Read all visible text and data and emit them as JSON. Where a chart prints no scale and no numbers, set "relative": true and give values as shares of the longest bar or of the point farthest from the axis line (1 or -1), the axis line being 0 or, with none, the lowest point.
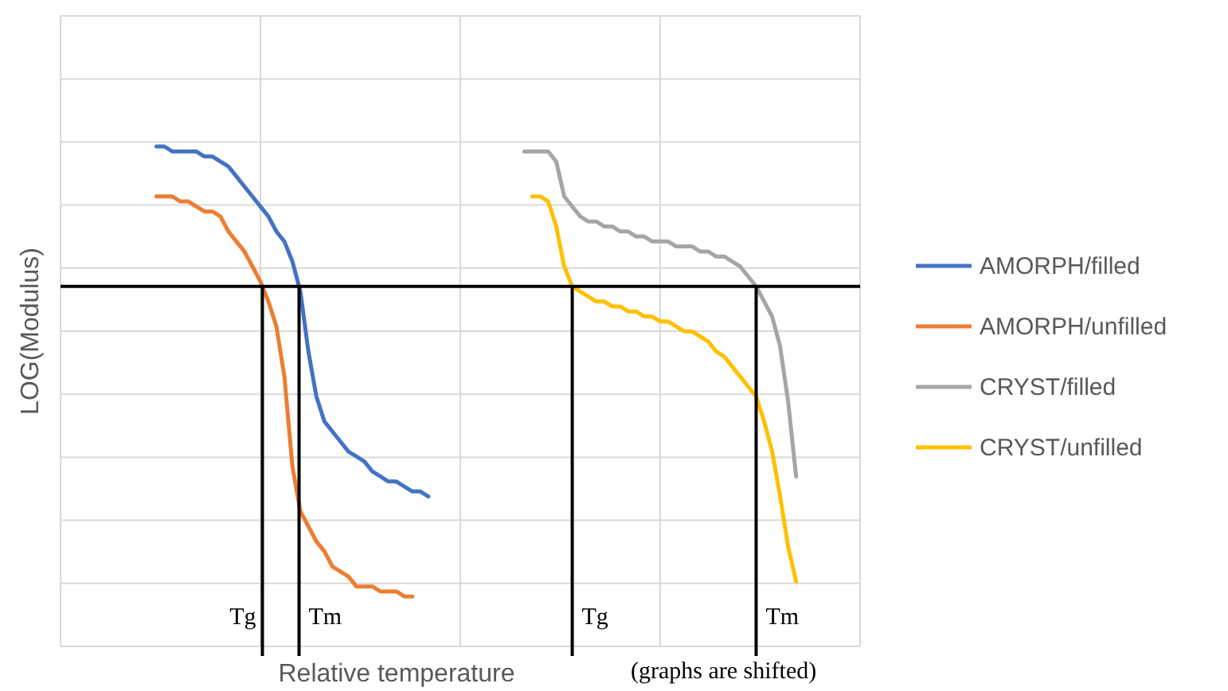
{
  "chart_data": {
    "type": "line",
    "relative": true,
    "xlabel": "Relative temperature",
    "ylabel": "LOG(Modulus)",
    "annotations": [
      "Tg",
      "Tm",
      "Tg",
      "Tm",
      "(graphs are shifted)"
    ],
    "grid": true,
    "legend": "right",
    "marker": "none",
    "line_style": "solid",
    "categories": [
      null,
      null,
      null,
      null,
      null,
      null,
      null,
      null,
      null,
      null,
      null,
      null,
      null,
      null,
      null,
      null,
      null,
      null,
      null,
      null,
      null,
      null,
      null,
      null,
      null,
      null,
      null,
      null,
      null,
      null,
      null,
      null,
      null,
      null,
      null,
      null,
      null,
      null,
      null,
      null,
      null,
      null,
      null,
      null,
      null,
      null,
      null,
      null,
      null,
      null,
      null,
      null,
      null,
      null,
      null,
      null,
      null,
      null,
      null,
      null,
      null,
      null,
      null,
      null,
      null,
      null,
      null,
      null,
      null,
      null,
      null,
      null,
      null,
      null,
      null,
      null,
      null,
      null,
      null,
      null,
      null,
      null,
      null,
      null,
      null,
      null,
      null,
      null,
      null,
      null,
      null,
      null,
      null,
      null,
      null,
      null,
      null,
      null,
      null,
      null,
      null
    ],
    "ref_lines": [
      {
        "axis": "y",
        "value": 0.72,
        "label": null,
        "color": "#000000"
      }
    ],
    "series": [
      {
        "name": "AMORPH/filled",
        "color": "#4472c4",
        "values": [
          null,
          null,
          null,
          null,
          null,
          null,
          null,
          null,
          null,
          null,
          null,
          null,
          1.0,
          1.0,
          0.99,
          0.99,
          0.99,
          0.99,
          0.98,
          0.98,
          0.97,
          0.96,
          0.94,
          0.92,
          0.9,
          0.88,
          0.86,
          0.83,
          0.81,
          0.77,
          0.71,
          0.59,
          0.5,
          0.45,
          0.43,
          0.41,
          0.39,
          0.38,
          0.37,
          0.35,
          0.34,
          0.33,
          0.33,
          0.32,
          0.31,
          0.31,
          0.3,
          null,
          null,
          null,
          null,
          null,
          null,
          null,
          null,
          null,
          null,
          null,
          null,
          null,
          null,
          null,
          null,
          null,
          null,
          null,
          null,
          null,
          null,
          null,
          null,
          null,
          null,
          null,
          null,
          null,
          null,
          null,
          null,
          null,
          null,
          null,
          null,
          null,
          null,
          null,
          null,
          null,
          null,
          null,
          null,
          null,
          null,
          null,
          null,
          null,
          null,
          null,
          null,
          null,
          null
        ]
      },
      {
        "name": "AMORPH/unfilled",
        "color": "#ed7d31",
        "values": [
          null,
          null,
          null,
          null,
          null,
          null,
          null,
          null,
          null,
          null,
          null,
          null,
          0.9,
          0.9,
          0.9,
          0.89,
          0.89,
          0.88,
          0.87,
          0.87,
          0.86,
          0.83,
          0.81,
          0.79,
          0.76,
          0.73,
          0.69,
          0.64,
          0.54,
          0.36,
          0.27,
          0.24,
          0.21,
          0.19,
          0.16,
          0.15,
          0.14,
          0.12,
          0.12,
          0.12,
          0.11,
          0.11,
          0.11,
          0.1,
          0.1,
          null,
          null,
          null,
          null,
          null,
          null,
          null,
          null,
          null,
          null,
          null,
          null,
          null,
          null,
          null,
          null,
          null,
          null,
          null,
          null,
          null,
          null,
          null,
          null,
          null,
          null,
          null,
          null,
          null,
          null,
          null,
          null,
          null,
          null,
          null,
          null,
          null,
          null,
          null,
          null,
          null,
          null,
          null,
          null,
          null,
          null,
          null,
          null,
          null,
          null,
          null,
          null,
          null,
          null,
          null,
          null
        ]
      },
      {
        "name": "CRYST/filled",
        "color": "#a5a5a5",
        "values": [
          null,
          null,
          null,
          null,
          null,
          null,
          null,
          null,
          null,
          null,
          null,
          null,
          null,
          null,
          null,
          null,
          null,
          null,
          null,
          null,
          null,
          null,
          null,
          null,
          null,
          null,
          null,
          null,
          null,
          null,
          null,
          null,
          null,
          null,
          null,
          null,
          null,
          null,
          null,
          null,
          null,
          null,
          null,
          null,
          null,
          null,
          null,
          null,
          null,
          null,
          null,
          null,
          null,
          null,
          null,
          null,
          null,
          null,
          0.99,
          0.99,
          0.99,
          0.99,
          0.97,
          0.9,
          0.88,
          0.86,
          0.85,
          0.85,
          0.84,
          0.84,
          0.83,
          0.83,
          0.82,
          0.82,
          0.81,
          0.81,
          0.81,
          0.8,
          0.8,
          0.8,
          0.79,
          0.79,
          0.78,
          0.78,
          0.77,
          0.76,
          0.74,
          0.72,
          0.69,
          0.66,
          0.6,
          0.49,
          0.34,
          null,
          null,
          null,
          null,
          null,
          null,
          null,
          null
        ]
      },
      {
        "name": "CRYST/unfilled",
        "color": "#ffc000",
        "values": [
          null,
          null,
          null,
          null,
          null,
          null,
          null,
          null,
          null,
          null,
          null,
          null,
          null,
          null,
          null,
          null,
          null,
          null,
          null,
          null,
          null,
          null,
          null,
          null,
          null,
          null,
          null,
          null,
          null,
          null,
          null,
          null,
          null,
          null,
          null,
          null,
          null,
          null,
          null,
          null,
          null,
          null,
          null,
          null,
          null,
          null,
          null,
          null,
          null,
          null,
          null,
          null,
          null,
          null,
          null,
          null,
          null,
          null,
          null,
          0.9,
          0.9,
          0.89,
          0.84,
          0.76,
          0.72,
          0.71,
          0.7,
          0.69,
          0.69,
          0.68,
          0.68,
          0.67,
          0.67,
          0.66,
          0.66,
          0.65,
          0.65,
          0.64,
          0.63,
          0.63,
          0.62,
          0.61,
          0.59,
          0.58,
          0.56,
          0.54,
          0.52,
          0.5,
          0.45,
          0.39,
          0.3,
          0.2,
          0.13,
          null,
          null,
          null,
          null,
          null,
          null,
          null,
          null
        ]
      }
    ]
  }
}
